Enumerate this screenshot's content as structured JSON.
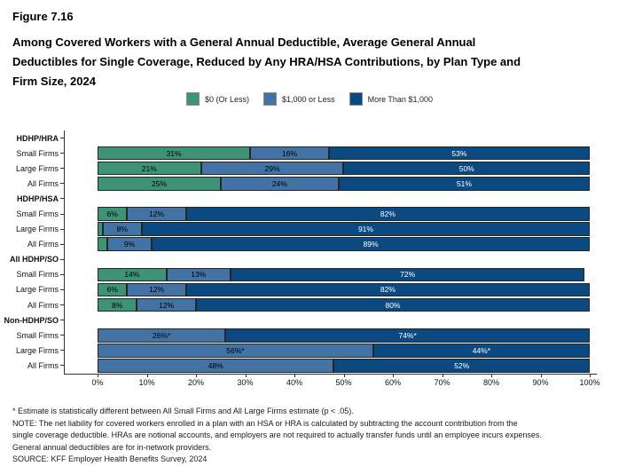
{
  "figure": {
    "label": "Figure 7.16",
    "title": "Among Covered Workers with a General Annual Deductible, Average General Annual Deductibles for Single Coverage, Reduced by Any HRA/HSA Contributions, by Plan Type and Firm Size, 2024"
  },
  "chart_data": {
    "type": "bar",
    "stacked": true,
    "orientation": "horizontal",
    "unit": "percent",
    "xlim": [
      0,
      100
    ],
    "x_ticks": [
      "0%",
      "10%",
      "20%",
      "30%",
      "40%",
      "50%",
      "60%",
      "70%",
      "80%",
      "90%",
      "100%"
    ],
    "grid": false,
    "legend_position": "top",
    "series_names": [
      "$0 (Or Less)",
      "$1,000 or Less",
      "More Than $1,000"
    ],
    "series_colors": [
      "#3E9377",
      "#4273A4",
      "#0B4A80"
    ],
    "series_text_colors": [
      "#000000",
      "#000000",
      "#ffffff"
    ],
    "groups": [
      {
        "name": "HDHP/HRA",
        "rows": [
          {
            "label": "Small Firms",
            "values": [
              31,
              16,
              53
            ],
            "value_labels": [
              "31%",
              "16%",
              "53%"
            ]
          },
          {
            "label": "Large Firms",
            "values": [
              21,
              29,
              50
            ],
            "value_labels": [
              "21%",
              "29%",
              "50%"
            ]
          },
          {
            "label": "All Firms",
            "values": [
              25,
              24,
              51
            ],
            "value_labels": [
              "25%",
              "24%",
              "51%"
            ]
          }
        ]
      },
      {
        "name": "HDHP/HSA",
        "rows": [
          {
            "label": "Small Firms",
            "values": [
              6,
              12,
              82
            ],
            "value_labels": [
              "6%",
              "12%",
              "82%"
            ]
          },
          {
            "label": "Large Firms",
            "values": [
              1,
              8,
              91
            ],
            "value_labels": [
              "",
              "8%",
              "91%"
            ]
          },
          {
            "label": "All Firms",
            "values": [
              2,
              9,
              89
            ],
            "value_labels": [
              "",
              "9%",
              "89%"
            ]
          }
        ]
      },
      {
        "name": "All HDHP/SO",
        "rows": [
          {
            "label": "Small Firms",
            "values": [
              14,
              13,
              72
            ],
            "value_labels": [
              "14%",
              "13%",
              "72%"
            ]
          },
          {
            "label": "Large Firms",
            "values": [
              6,
              12,
              82
            ],
            "value_labels": [
              "6%",
              "12%",
              "82%"
            ]
          },
          {
            "label": "All Firms",
            "values": [
              8,
              12,
              80
            ],
            "value_labels": [
              "8%",
              "12%",
              "80%"
            ]
          }
        ]
      },
      {
        "name": "Non-HDHP/SO",
        "rows": [
          {
            "label": "Small Firms",
            "values": [
              0,
              26,
              74
            ],
            "value_labels": [
              "",
              "26%*",
              "74%*"
            ]
          },
          {
            "label": "Large Firms",
            "values": [
              0,
              56,
              44
            ],
            "value_labels": [
              "",
              "56%*",
              "44%*"
            ]
          },
          {
            "label": "All Firms",
            "values": [
              0,
              48,
              52
            ],
            "value_labels": [
              "",
              "48%",
              "52%"
            ]
          }
        ]
      }
    ]
  },
  "footnotes": {
    "line1": "* Estimate is statistically different between All Small Firms and All Large Firms estimate (p < .05).",
    "line2": "NOTE: The net liability for covered workers enrolled in a plan with an HSA or HRA is calculated by subtracting the account contribution from the",
    "line3": "single coverage deductible. HRAs are notional accounts, and employers are not required to actually transfer funds until an employee incurs expenses.",
    "line4": "General annual deductibles are for in-network providers.",
    "line5": "SOURCE: KFF Employer Health Benefits Survey, 2024"
  }
}
